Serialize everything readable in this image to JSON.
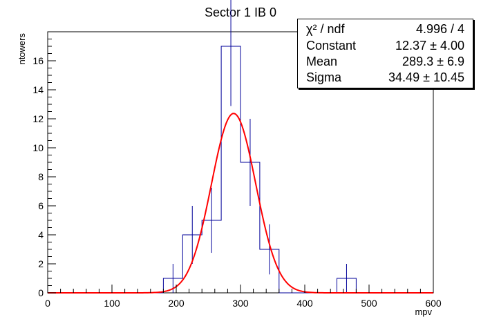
{
  "chart_data": {
    "type": "bar",
    "title": "Sector 1 IB 0",
    "xlabel": "mpv",
    "ylabel": "ntowers",
    "xlim": [
      0,
      600
    ],
    "ylim": [
      0,
      18
    ],
    "bin_width": 30,
    "bins": [
      {
        "x_low": 180,
        "x_high": 210,
        "count": 1,
        "error": 1
      },
      {
        "x_low": 210,
        "x_high": 240,
        "count": 4,
        "error": 2
      },
      {
        "x_low": 240,
        "x_high": 270,
        "count": 5,
        "error": 2.24
      },
      {
        "x_low": 270,
        "x_high": 300,
        "count": 17,
        "error": 4.12
      },
      {
        "x_low": 300,
        "x_high": 330,
        "count": 9,
        "error": 3
      },
      {
        "x_low": 330,
        "x_high": 360,
        "count": 3,
        "error": 1.73
      },
      {
        "x_low": 360,
        "x_high": 390,
        "count": 0,
        "error": 0
      },
      {
        "x_low": 390,
        "x_high": 420,
        "count": 0,
        "error": 0
      },
      {
        "x_low": 420,
        "x_high": 450,
        "count": 0,
        "error": 0
      },
      {
        "x_low": 450,
        "x_high": 480,
        "count": 1,
        "error": 1
      }
    ],
    "x_ticks": [
      "0",
      "100",
      "200",
      "300",
      "400",
      "500",
      "600"
    ],
    "y_ticks": [
      "0",
      "2",
      "4",
      "6",
      "8",
      "10",
      "12",
      "14",
      "16"
    ],
    "fit": {
      "function": "gaus",
      "constant": 12.37,
      "mean": 289.3,
      "sigma": 34.49
    },
    "colors": {
      "histogram": "#000099",
      "fit": "#ff0000"
    }
  },
  "stats": {
    "chi2_label": "χ² / ndf",
    "chi2_value": "4.996 / 4",
    "constant_label": "Constant",
    "constant_value": "12.37 ± 4.00",
    "mean_label": "Mean",
    "mean_value": "289.3 ± 6.9",
    "sigma_label": "Sigma",
    "sigma_value": "34.49 ± 10.45"
  }
}
